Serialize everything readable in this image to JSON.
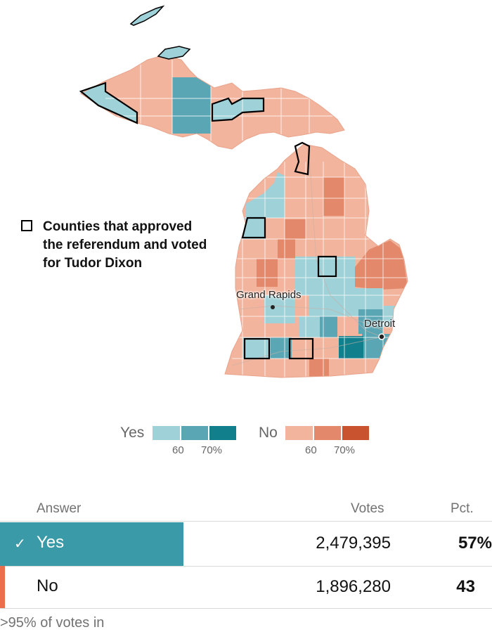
{
  "legend": {
    "yes_label": "Yes",
    "no_label": "No",
    "yes_ticks": [
      "60",
      "70%"
    ],
    "no_ticks": [
      "60",
      "70%"
    ],
    "yes_colors": [
      "#9ed1d8",
      "#5aa6b4",
      "#11808c"
    ],
    "no_colors": [
      "#f2b49c",
      "#e3886a",
      "#c9522f"
    ]
  },
  "callout": {
    "text": "Counties that approved the referendum and voted for Tudor Dixon"
  },
  "cities": {
    "grand_rapids": "Grand Rapids",
    "detroit": "Detroit"
  },
  "table": {
    "headers": {
      "answer": "Answer",
      "votes": "Votes",
      "pct": "Pct."
    },
    "rows": [
      {
        "answer": "Yes",
        "votes": "2,479,395",
        "pct": "57%",
        "winner": true,
        "color": "#3a9aa7",
        "check": "✓"
      },
      {
        "answer": "No",
        "votes": "1,896,280",
        "pct": "43",
        "winner": false,
        "color": "#e8704b"
      }
    ],
    "reporting": ">95% of votes in"
  }
}
